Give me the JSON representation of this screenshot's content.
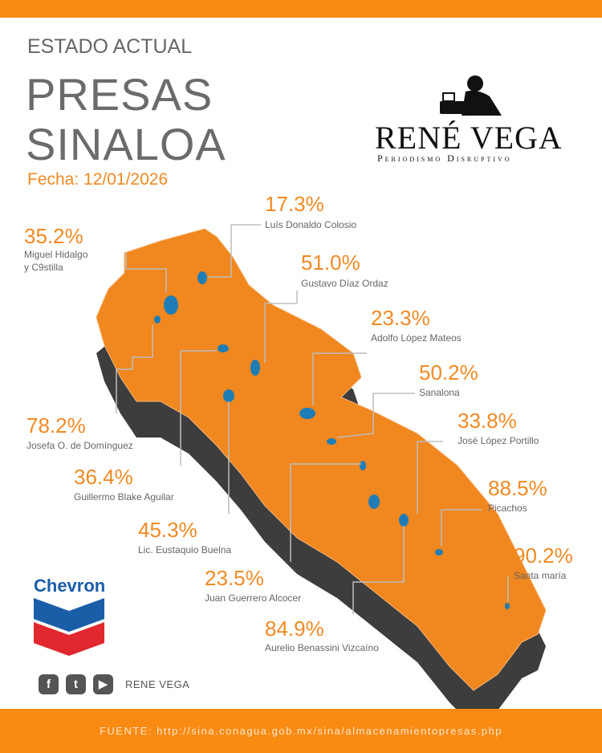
{
  "header": {
    "subtitle": "ESTADO ACTUAL",
    "title_line1": "PRESAS",
    "title_line2": "SINALOA",
    "date": "Fecha: 12/01/2026"
  },
  "brand": {
    "name": "RENÉ VEGA",
    "tagline": "Periodismo Disruptivo"
  },
  "sponsor": {
    "name": "Chevron"
  },
  "social": {
    "icons": [
      "facebook-icon",
      "twitter-icon",
      "youtube-icon"
    ],
    "handle": "RENE VEGA"
  },
  "dams": [
    {
      "pct": "17.3%",
      "name": "Luís Donaldo Colosio"
    },
    {
      "pct": "35.2%",
      "name": "Miguel Hidalgo",
      "name2": "y C9stilla"
    },
    {
      "pct": "51.0%",
      "name": "Gustavo Díaz Ordaz"
    },
    {
      "pct": "23.3%",
      "name": "Adolfo López Mateos"
    },
    {
      "pct": "50.2%",
      "name": "Sanalona"
    },
    {
      "pct": "78.2%",
      "name": "Josefa O. de Domínguez"
    },
    {
      "pct": "33.8%",
      "name": "José López Portillo"
    },
    {
      "pct": "36.4%",
      "name": "Guillermo Blake Aguilar"
    },
    {
      "pct": "88.5%",
      "name": "Picachos"
    },
    {
      "pct": "45.3%",
      "name": "Lic. Eustaquio Buelna"
    },
    {
      "pct": "90.2%",
      "name": "Santa maría"
    },
    {
      "pct": "23.5%",
      "name": "Juan Guerrero Alcocer"
    },
    {
      "pct": "84.9%",
      "name": "Aurelio Benassini Vizcaíno"
    }
  ],
  "footer": {
    "source": "FUENTE: http://sina.conagua.gob.mx/sina/almacenamientopresas.php"
  },
  "colors": {
    "accent": "#f98a12",
    "map": "#f0871f",
    "water": "#1f7db5",
    "text": "#666666"
  }
}
